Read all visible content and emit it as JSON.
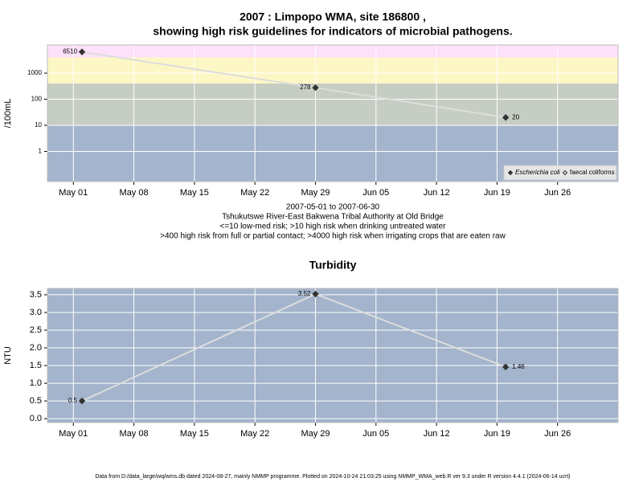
{
  "chart_data": [
    {
      "type": "line",
      "title": [
        "2007 : Limpopo WMA, site 186800 ,",
        "showing high risk guidelines for indicators of microbial pathogens."
      ],
      "y_label": "/100mL",
      "log_scale": true,
      "x": [
        "2007-05-02",
        "2007-05-29",
        "2007-06-20"
      ],
      "series": [
        {
          "name": "Escherichia coli",
          "color": "#333333",
          "marker": "filled-diamond",
          "values": [
            6510,
            278,
            20
          ]
        },
        {
          "name": "faecal coliforms",
          "color": "#333333",
          "marker": "open-diamond",
          "values": [
            null,
            null,
            null
          ]
        }
      ],
      "line_color": "#dddddd",
      "bands": [
        {
          "from": 0.07,
          "to": 10,
          "color": "#a3b4cc"
        },
        {
          "from": 10,
          "to": 400,
          "color": "#c6cdc2"
        },
        {
          "from": 400,
          "to": 4000,
          "color": "#fdf7c6"
        },
        {
          "from": 4000,
          "to": 12000,
          "color": "#fde0fa"
        }
      ],
      "xlim": [
        "2007-04-28",
        "2007-07-03"
      ],
      "xticks": [
        {
          "value": "2007-05-01",
          "label": "May 01"
        },
        {
          "value": "2007-05-08",
          "label": "May 08"
        },
        {
          "value": "2007-05-15",
          "label": "May 15"
        },
        {
          "value": "2007-05-22",
          "label": "May 22"
        },
        {
          "value": "2007-05-29",
          "label": "May 29"
        },
        {
          "value": "2007-06-05",
          "label": "Jun 05"
        },
        {
          "value": "2007-06-12",
          "label": "Jun 12"
        },
        {
          "value": "2007-06-19",
          "label": "Jun 19"
        },
        {
          "value": "2007-06-26",
          "label": "Jun 26"
        }
      ],
      "ylim": [
        0.07,
        12000
      ],
      "yticks": [
        1,
        10,
        100,
        1000
      ],
      "grid": true,
      "legend": "bottom-right",
      "notes": [
        "2007-05-01 to 2007-06-30",
        "Tshukutswe River-East Bakwena Tribal Authority at Old Bridge",
        "<=10 low-med risk; >10 high risk when drinking untreated water",
        ">400 high risk from full or partial contact; >4000 high risk when irrigating crops that are eaten raw"
      ]
    },
    {
      "type": "line",
      "title": [
        "Turbidity"
      ],
      "y_label": "NTU",
      "log_scale": false,
      "x": [
        "2007-05-02",
        "2007-05-29",
        "2007-06-20"
      ],
      "series": [
        {
          "name": "Turbidity",
          "color": "#333333",
          "marker": "filled-diamond",
          "values": [
            0.5,
            3.52,
            1.46
          ]
        }
      ],
      "line_color": "#dddddd",
      "background": "#a3b4cc",
      "xlim": [
        "2007-04-28",
        "2007-07-03"
      ],
      "xticks": [
        {
          "value": "2007-05-01",
          "label": "May 01"
        },
        {
          "value": "2007-05-08",
          "label": "May 08"
        },
        {
          "value": "2007-05-15",
          "label": "May 15"
        },
        {
          "value": "2007-05-22",
          "label": "May 22"
        },
        {
          "value": "2007-05-29",
          "label": "May 29"
        },
        {
          "value": "2007-06-05",
          "label": "Jun 05"
        },
        {
          "value": "2007-06-12",
          "label": "Jun 12"
        },
        {
          "value": "2007-06-19",
          "label": "Jun 19"
        },
        {
          "value": "2007-06-26",
          "label": "Jun 26"
        }
      ],
      "ylim": [
        -0.11,
        3.68
      ],
      "yticks": [
        {
          "value": 0,
          "label": "0.0"
        },
        0.5,
        {
          "value": 1,
          "label": "1.0"
        },
        1.5,
        {
          "value": 2,
          "label": "2.0"
        },
        2.5,
        {
          "value": 3,
          "label": "3.0"
        },
        3.5
      ],
      "grid": true
    }
  ],
  "footer": "Data from D:/data_large/wq/wms.db dated 2024-08-27, mainly NMMP programme. Plotted on 2024-10-24 21:03:25 using NMMP_WMA_web.R ver 9.3 under R version 4.4.1 (2024-06-14 ucrt)"
}
